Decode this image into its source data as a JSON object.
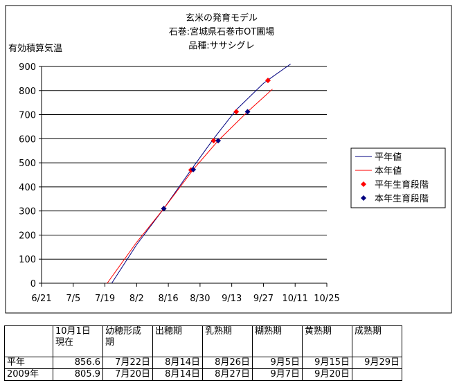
{
  "chart_data": {
    "type": "line",
    "title": "玄米の発育モデル",
    "subtitle": [
      "石巻:宮城県石巻市OT圃場",
      "品種:ササシグレ"
    ],
    "y_label": "有効積算気温",
    "xlim": [
      "6/21",
      "10/25"
    ],
    "xticks": [
      "6/21",
      "7/5",
      "7/19",
      "8/2",
      "8/16",
      "8/30",
      "9/13",
      "9/27",
      "10/11",
      "10/25"
    ],
    "ylim": [
      0,
      900
    ],
    "yticks": [
      0,
      100,
      200,
      300,
      400,
      500,
      600,
      700,
      800,
      900
    ],
    "grid": true,
    "legend": "right",
    "series": [
      {
        "name": "平年値",
        "type": "line",
        "color": "#000080",
        "x": [
          "7/22",
          "8/2",
          "8/14",
          "8/26",
          "9/5",
          "9/15",
          "9/27",
          "10/1",
          "10/9"
        ],
        "values": [
          0,
          160,
          310,
          470,
          600,
          720,
          830,
          857,
          910
        ]
      },
      {
        "name": "本年値",
        "type": "line",
        "color": "#ff0000",
        "x": [
          "7/20",
          "8/2",
          "8/14",
          "8/27",
          "9/7",
          "9/20",
          "10/1"
        ],
        "values": [
          0,
          170,
          310,
          472,
          592,
          712,
          806
        ]
      },
      {
        "name": "平年生育段階",
        "type": "scatter",
        "color": "#ff0000",
        "x": [
          "8/14",
          "8/26",
          "9/5",
          "9/15",
          "9/29"
        ],
        "values": [
          310,
          470,
          592,
          712,
          842
        ]
      },
      {
        "name": "本年生育段階",
        "type": "scatter",
        "color": "#000080",
        "x": [
          "8/14",
          "8/27",
          "9/7",
          "9/20"
        ],
        "values": [
          310,
          472,
          592,
          712
        ]
      }
    ]
  },
  "table": {
    "header": [
      null,
      "10月1日\n現在",
      "幼穂形成\n期",
      "出穂期",
      "乳熟期",
      "糊熟期",
      "黄熟期",
      "成熟期"
    ],
    "rows": [
      [
        "平年",
        856.6,
        "7月22日",
        "8月14日",
        "8月26日",
        "9月5日",
        "9月15日",
        "9月29日"
      ],
      [
        "2009年",
        805.9,
        "7月20日",
        "8月14日",
        "8月27日",
        "9月7日",
        "9月20日",
        null
      ]
    ]
  }
}
